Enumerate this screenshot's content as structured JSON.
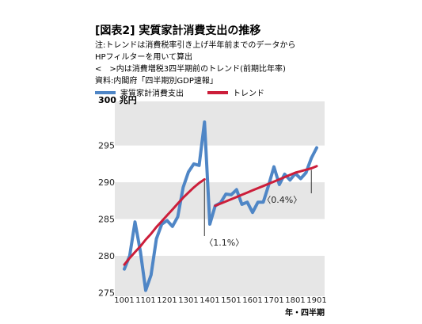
{
  "header": {
    "figure_label": "[図表2]",
    "title": "実質家計消費支出の推移",
    "notes": [
      "注:トレンドは消費税率引き上げ半年前までのデータから",
      "HPフィルターを用いて算出",
      "<　>内は消費増税3四半期前のトレンド(前期比年率)",
      "資料:内閣府「四半期別GDP速報」"
    ]
  },
  "legend": [
    {
      "label": "実質家計消費支出",
      "color": "#4f86c6"
    },
    {
      "label": "トレンド",
      "color": "#cc1e3a"
    }
  ],
  "chart_data": {
    "type": "line",
    "ylabel": "300 兆円",
    "xlabel": "年・四半期",
    "ylim": [
      274.5,
      301
    ],
    "yticks": [
      275,
      280,
      285,
      290,
      295
    ],
    "x_ticks": [
      "1001",
      "1101",
      "1201",
      "1301",
      "1401",
      "1501",
      "1601",
      "1701",
      "1801",
      "1901"
    ],
    "grid": "horizontal bands",
    "series": [
      {
        "name": "実質家計消費支出",
        "color": "#4f86c6",
        "x": [
          1001,
          1002,
          1003,
          1004,
          1101,
          1102,
          1103,
          1104,
          1201,
          1202,
          1203,
          1204,
          1301,
          1302,
          1303,
          1304,
          1401,
          1402,
          1403,
          1404,
          1501,
          1502,
          1503,
          1504,
          1601,
          1602,
          1603,
          1604,
          1701,
          1702,
          1703,
          1704,
          1801,
          1802,
          1803,
          1804,
          1901
        ],
        "values": [
          278.2,
          280.0,
          284.6,
          280.6,
          275.3,
          277.4,
          282.3,
          284.3,
          284.8,
          284.0,
          285.3,
          289.3,
          291.4,
          292.5,
          292.3,
          298.2,
          284.3,
          286.8,
          287.2,
          288.4,
          288.3,
          289.0,
          287.0,
          287.3,
          285.9,
          287.3,
          287.3,
          289.6,
          292.1,
          289.7,
          291.1,
          290.3,
          291.2,
          290.5,
          291.3,
          293.3,
          294.7
        ]
      },
      {
        "name": "トレンド",
        "color": "#cc1e3a",
        "x": [
          1001,
          1002,
          1003,
          1004,
          1101,
          1102,
          1103,
          1104,
          1201,
          1202,
          1203,
          1204,
          1301,
          1302,
          1303,
          1304
        ],
        "values": [
          278.8,
          279.7,
          280.5,
          281.3,
          282.2,
          283.0,
          283.9,
          284.7,
          285.5,
          286.3,
          287.1,
          287.9,
          288.6,
          289.3,
          289.9,
          290.4
        ]
      },
      {
        "name": "トレンド",
        "color": "#cc1e3a",
        "x": [
          1402,
          1403,
          1404,
          1501,
          1502,
          1503,
          1504,
          1601,
          1602,
          1603,
          1604,
          1701,
          1702,
          1703,
          1704,
          1801,
          1802,
          1803,
          1804,
          1901
        ],
        "values": [
          286.8,
          287.1,
          287.4,
          287.7,
          288.0,
          288.3,
          288.6,
          288.9,
          289.2,
          289.5,
          289.8,
          290.1,
          290.4,
          290.7,
          291.0,
          291.3,
          291.5,
          291.7,
          291.9,
          292.2
        ]
      }
    ],
    "annotations": [
      {
        "label": "〈1.1%〉",
        "at_x": 1304,
        "at_value": 290.4
      },
      {
        "label": "〈0.4%〉",
        "at_x": 1804,
        "at_value": 291.9
      }
    ]
  }
}
